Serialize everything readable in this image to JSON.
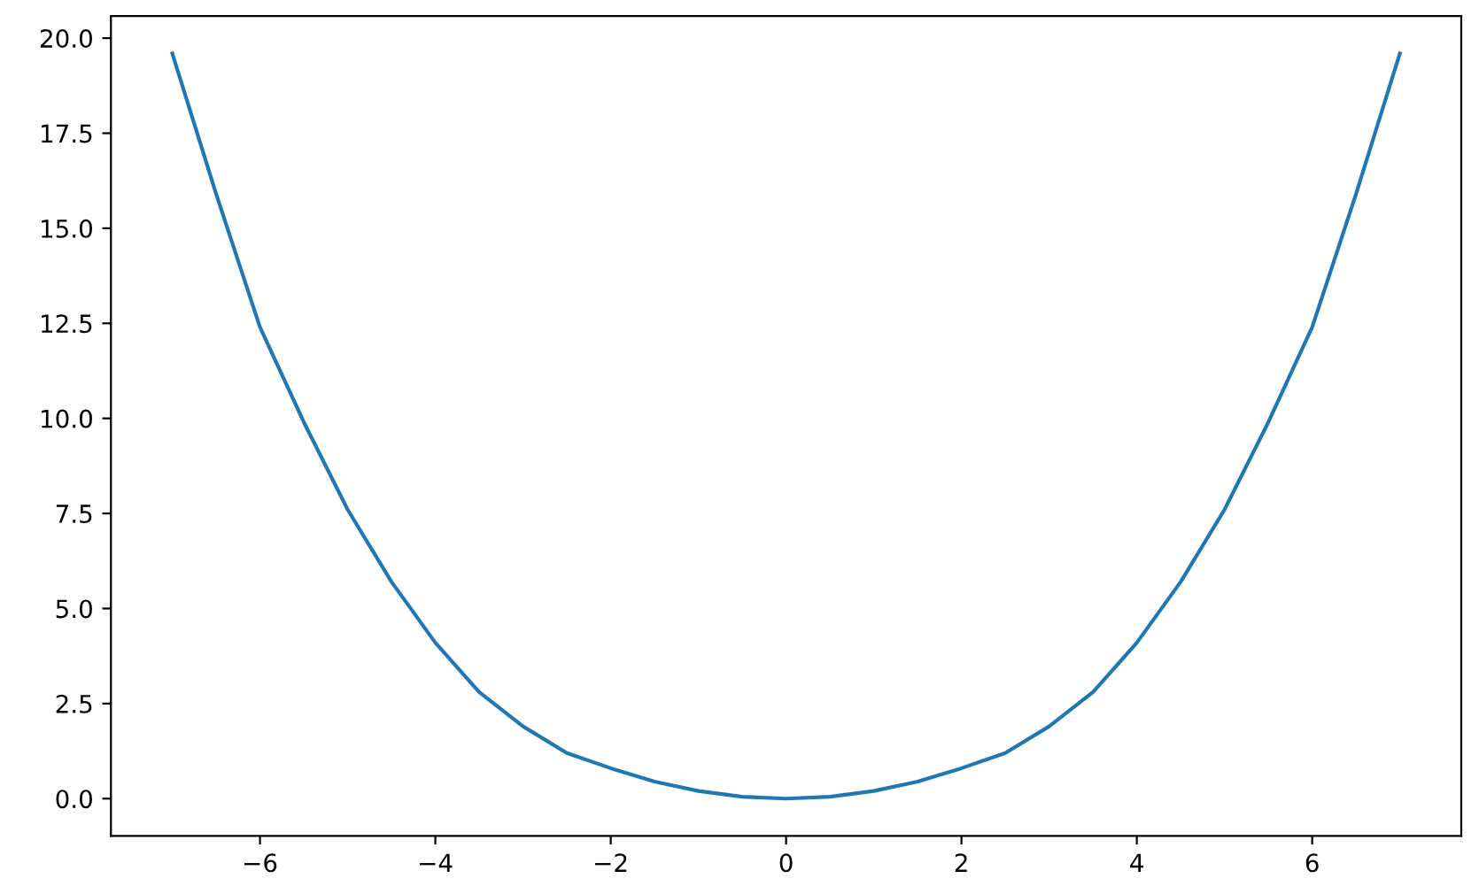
{
  "chart_data": {
    "type": "line",
    "x": [
      -7,
      -6.5,
      -6,
      -5.5,
      -5,
      -4.5,
      -4,
      -3.5,
      -3,
      -2.5,
      -2,
      -1.5,
      -1,
      -0.5,
      0,
      0.5,
      1,
      1.5,
      2,
      2.5,
      3,
      3.5,
      4,
      4.5,
      5,
      5.5,
      6,
      6.5,
      7
    ],
    "series": [
      {
        "color": "#1f77b4",
        "values": [
          19.6,
          15.9,
          12.4,
          9.9,
          7.6,
          5.7,
          4.1,
          2.8,
          1.9,
          1.2,
          0.8,
          0.45,
          0.2,
          0.05,
          0,
          0.05,
          0.2,
          0.45,
          0.8,
          1.2,
          1.9,
          2.8,
          4.1,
          5.7,
          7.6,
          9.9,
          12.4,
          15.9,
          19.6
        ]
      }
    ],
    "xlim": [
      -7.7,
      7.7
    ],
    "ylim": [
      -0.98,
      20.58
    ],
    "xticks": [
      {
        "value": -6,
        "label": "−6"
      },
      {
        "value": -4,
        "label": "−4"
      },
      {
        "value": -2,
        "label": "−2"
      },
      0,
      2,
      4,
      6
    ],
    "yticks": [
      {
        "value": 0,
        "label": "0.0"
      },
      {
        "value": 2.5,
        "label": "2.5"
      },
      {
        "value": 5,
        "label": "5.0"
      },
      {
        "value": 7.5,
        "label": "7.5"
      },
      {
        "value": 10,
        "label": "10.0"
      },
      {
        "value": 12.5,
        "label": "12.5"
      },
      {
        "value": 15,
        "label": "15.0"
      },
      {
        "value": 17.5,
        "label": "17.5"
      },
      {
        "value": 20,
        "label": "20.0"
      }
    ],
    "grid": false,
    "legend": false
  }
}
